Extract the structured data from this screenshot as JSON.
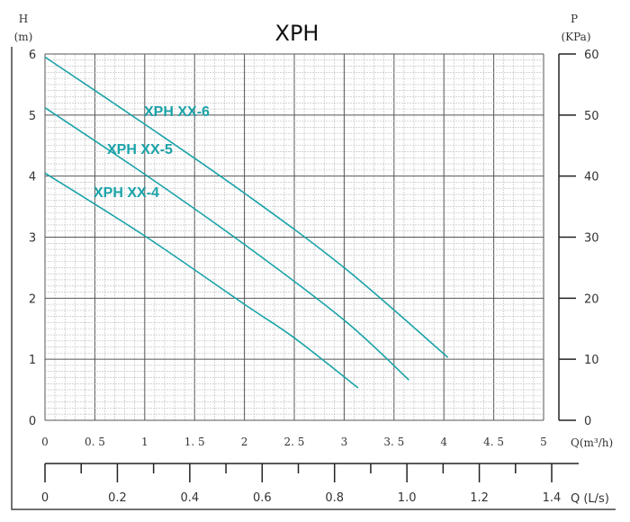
{
  "chart_data": {
    "type": "line",
    "title": "XPH",
    "ylabel": "H",
    "ylabel_unit": "(m)",
    "y2label": "P",
    "y2label_unit": "(KPa)",
    "xlabel": "Q(m³/h)",
    "x2label": "Q (L/s)",
    "xlim": [
      0,
      5
    ],
    "ylim": [
      0,
      6
    ],
    "y2lim": [
      0,
      60
    ],
    "x2lim": [
      0,
      1.4
    ],
    "grid": true,
    "x_ticks": [
      "0",
      "0. 5",
      "1",
      "1. 5",
      "2",
      "2. 5",
      "3",
      "3. 5",
      "4",
      "4. 5",
      "5"
    ],
    "y_ticks": [
      "0",
      "1",
      "2",
      "3",
      "4",
      "5",
      "6"
    ],
    "y2_ticks": [
      "0",
      "10",
      "20",
      "30",
      "40",
      "50",
      "60"
    ],
    "x2_ticks": [
      "0",
      "0.2",
      "0.4",
      "0.6",
      "0.8",
      "1.0",
      "1.2",
      "1.4"
    ],
    "line_color": "#1aa3a8",
    "series": [
      {
        "name": "XPH XX-6",
        "x": [
          0,
          1,
          2,
          3,
          4.04
        ],
        "y": [
          5.95,
          4.85,
          3.72,
          2.5,
          1.03
        ]
      },
      {
        "name": "XPH XX-5",
        "x": [
          0,
          1,
          2,
          3,
          3.65
        ],
        "y": [
          5.12,
          4.03,
          2.88,
          1.64,
          0.66
        ]
      },
      {
        "name": "XPH XX-4",
        "x": [
          0,
          1,
          2,
          2.5,
          3.14
        ],
        "y": [
          4.05,
          3.02,
          1.9,
          1.35,
          0.53
        ]
      }
    ]
  }
}
